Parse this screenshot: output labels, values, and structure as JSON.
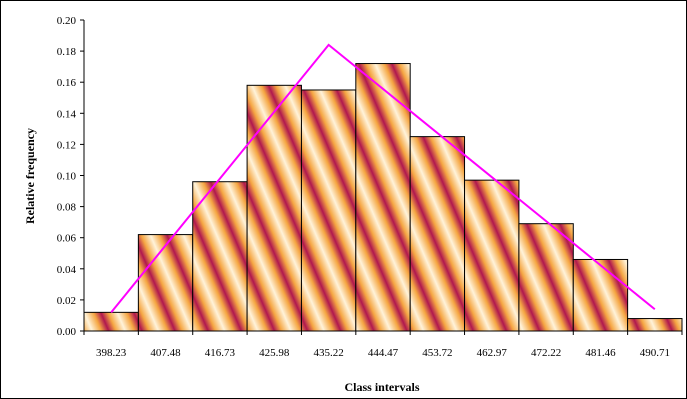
{
  "chart_data": {
    "type": "bar",
    "xlabel": "Class intervals",
    "ylabel": "Relative frequency",
    "ylim": [
      0,
      0.2
    ],
    "y_ticks": [
      "0.00",
      "0.02",
      "0.04",
      "0.06",
      "0.08",
      "0.10",
      "0.12",
      "0.14",
      "0.16",
      "0.18",
      "0.20"
    ],
    "categories": [
      "398.23",
      "407.48",
      "416.73",
      "425.98",
      "435.22",
      "444.47",
      "453.72",
      "462.97",
      "472.22",
      "481.46",
      "490.71"
    ],
    "values": [
      0.012,
      0.062,
      0.096,
      0.158,
      0.155,
      0.172,
      0.125,
      0.097,
      0.069,
      0.046,
      0.008
    ],
    "polygon": [
      {
        "x": "398.23",
        "y": 0.012
      },
      {
        "x": "435.22",
        "y": 0.184
      },
      {
        "x": "490.71",
        "y": 0.014
      }
    ],
    "grid": false,
    "legend": "none",
    "colors": {
      "bar_light": "#FFF3DA",
      "bar_orange": "#F5A642",
      "bar_crimson": "#B0174F",
      "line": "#FF00FF"
    }
  }
}
